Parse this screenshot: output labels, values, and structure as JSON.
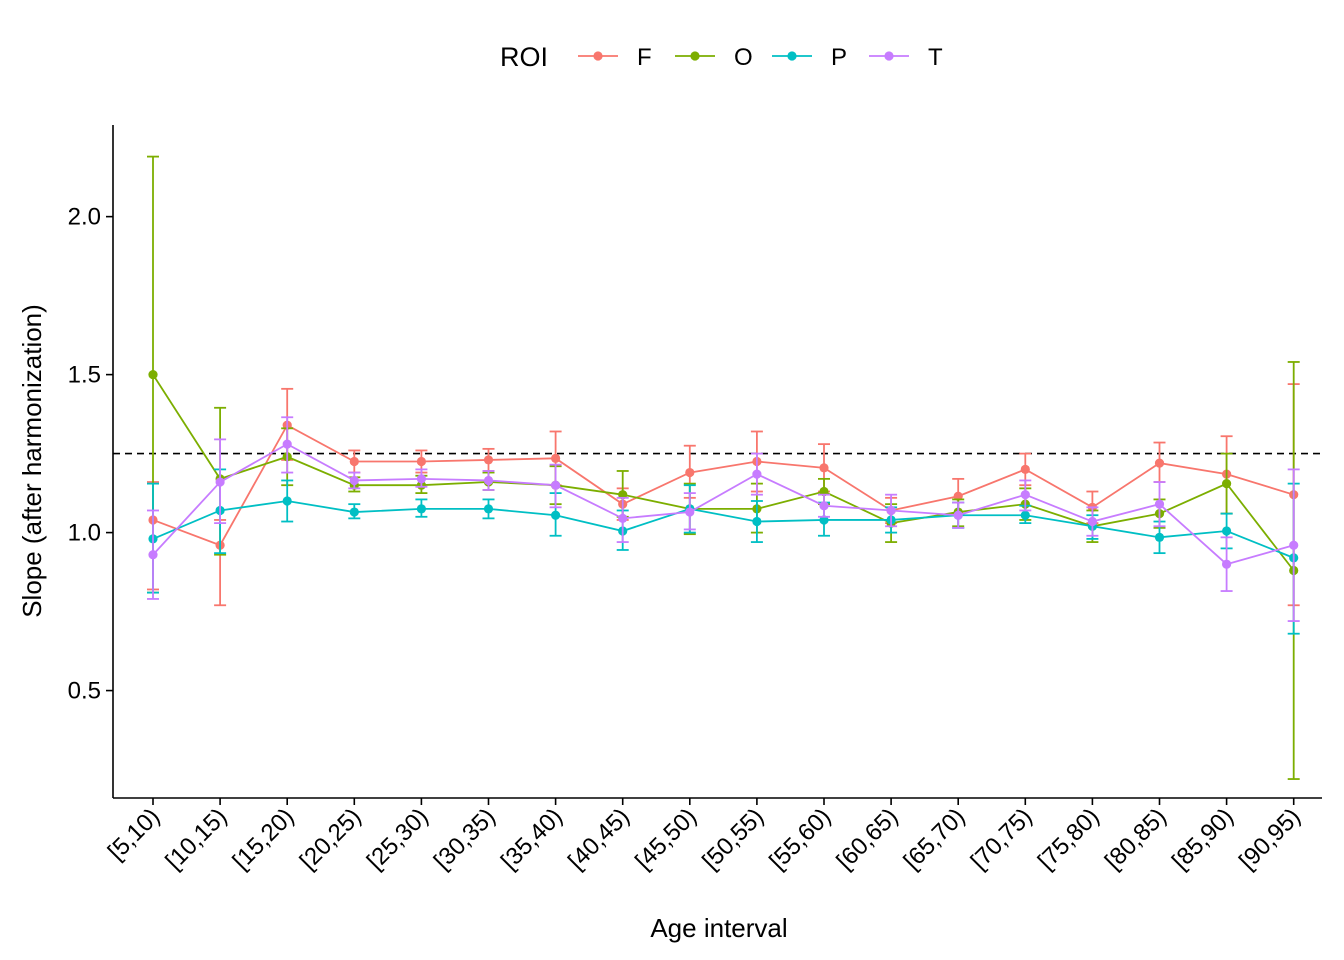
{
  "chart_data": {
    "type": "line",
    "xlabel": "Age interval",
    "ylabel": "Slope (after harmonization)",
    "categories": [
      "[5,10)",
      "[10,15)",
      "[15,20)",
      "[20,25)",
      "[25,30)",
      "[30,35)",
      "[35,40)",
      "[40,45)",
      "[45,50)",
      "[50,55)",
      "[55,60)",
      "[60,65)",
      "[65,70)",
      "[70,75)",
      "[75,80)",
      "[80,85)",
      "[85,90)",
      "[90,95)"
    ],
    "ylim": [
      0.16,
      2.29
    ],
    "yticks": [
      0.5,
      1.0,
      1.5,
      2.0
    ],
    "ytick_labels": [
      "0.5",
      "1.0",
      "1.5",
      "2.0"
    ],
    "reference_line": 1.25,
    "grid": false,
    "legend": {
      "title": "ROI",
      "position": "top"
    },
    "series": [
      {
        "name": "F",
        "color": "#F8766D",
        "values": [
          1.04,
          0.96,
          1.34,
          1.225,
          1.225,
          1.23,
          1.235,
          1.09,
          1.19,
          1.225,
          1.205,
          1.07,
          1.115,
          1.2,
          1.08,
          1.22,
          1.185,
          1.12
        ],
        "lower": [
          0.82,
          0.77,
          1.23,
          1.19,
          1.19,
          1.195,
          1.15,
          1.04,
          1.11,
          1.13,
          1.13,
          1.03,
          1.06,
          1.15,
          1.03,
          1.16,
          1.06,
          0.77
        ],
        "upper": [
          1.16,
          1.04,
          1.455,
          1.26,
          1.26,
          1.265,
          1.32,
          1.14,
          1.275,
          1.32,
          1.28,
          1.11,
          1.17,
          1.25,
          1.13,
          1.285,
          1.305,
          1.47
        ]
      },
      {
        "name": "O",
        "color": "#7CAE00",
        "values": [
          1.5,
          1.17,
          1.24,
          1.15,
          1.15,
          1.16,
          1.15,
          1.12,
          1.075,
          1.075,
          1.13,
          1.03,
          1.065,
          1.09,
          1.02,
          1.06,
          1.155,
          0.88
        ],
        "lower": [
          0.81,
          0.93,
          1.15,
          1.13,
          1.125,
          1.135,
          1.09,
          1.05,
          0.995,
          1.0,
          1.09,
          0.97,
          1.02,
          1.04,
          0.97,
          1.015,
          1.06,
          0.22
        ],
        "upper": [
          2.19,
          1.395,
          1.33,
          1.175,
          1.18,
          1.19,
          1.21,
          1.195,
          1.155,
          1.155,
          1.17,
          1.09,
          1.105,
          1.14,
          1.07,
          1.105,
          1.25,
          1.54
        ]
      },
      {
        "name": "P",
        "color": "#00BFC4",
        "values": [
          0.98,
          1.07,
          1.1,
          1.065,
          1.075,
          1.075,
          1.055,
          1.005,
          1.075,
          1.035,
          1.04,
          1.04,
          1.055,
          1.055,
          1.02,
          0.985,
          1.005,
          0.92
        ],
        "lower": [
          0.81,
          0.935,
          1.035,
          1.045,
          1.05,
          1.045,
          0.99,
          0.945,
          1.0,
          0.97,
          0.99,
          1.0,
          1.015,
          1.03,
          0.98,
          0.935,
          0.95,
          0.68
        ],
        "upper": [
          1.155,
          1.2,
          1.165,
          1.09,
          1.105,
          1.105,
          1.125,
          1.07,
          1.15,
          1.1,
          1.095,
          1.08,
          1.095,
          1.085,
          1.055,
          1.035,
          1.06,
          1.155
        ]
      },
      {
        "name": "T",
        "color": "#C77CFF",
        "values": [
          0.93,
          1.16,
          1.28,
          1.165,
          1.17,
          1.165,
          1.15,
          1.045,
          1.065,
          1.185,
          1.085,
          1.07,
          1.055,
          1.12,
          1.035,
          1.09,
          0.9,
          0.96
        ],
        "lower": [
          0.79,
          1.03,
          1.19,
          1.14,
          1.145,
          1.135,
          1.08,
          0.97,
          1.01,
          1.12,
          1.05,
          1.02,
          1.015,
          1.07,
          0.99,
          1.02,
          0.815,
          0.72
        ],
        "upper": [
          1.07,
          1.295,
          1.365,
          1.19,
          1.2,
          1.195,
          1.215,
          1.11,
          1.125,
          1.25,
          1.12,
          1.12,
          1.095,
          1.165,
          1.08,
          1.16,
          0.985,
          1.2
        ]
      }
    ]
  }
}
